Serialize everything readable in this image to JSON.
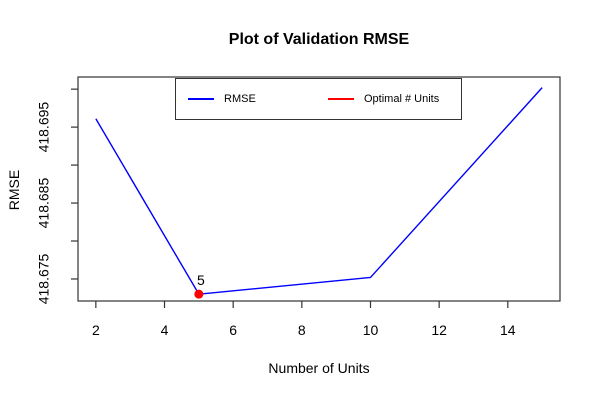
{
  "chart_data": {
    "type": "line",
    "title": "Plot of Validation RMSE",
    "xlabel": "Number of Units",
    "ylabel": "RMSE",
    "x": [
      2,
      5,
      10,
      15
    ],
    "series": [
      {
        "name": "RMSE",
        "color": "#0000ff",
        "values": [
          418.6961,
          418.673,
          418.6752,
          418.7002
        ]
      }
    ],
    "optimal_point": {
      "x": 5,
      "value": 418.673,
      "label": "5",
      "color": "#ff0000"
    },
    "xticks": [
      2,
      4,
      6,
      8,
      10,
      12,
      14
    ],
    "yticks": [
      {
        "value": 418.675,
        "label": "418.675"
      },
      {
        "value": 418.68,
        "label": ""
      },
      {
        "value": 418.685,
        "label": "418.685"
      },
      {
        "value": 418.69,
        "label": ""
      },
      {
        "value": 418.695,
        "label": "418.695"
      },
      {
        "value": 418.7,
        "label": ""
      }
    ],
    "xlim": [
      1.48,
      15.52
    ],
    "ylim": [
      418.6721,
      418.7016
    ],
    "grid": false,
    "axis_color": "#333333",
    "text_color": "#000000",
    "legend": {
      "position": "top-center-inside",
      "items": [
        {
          "label": "RMSE",
          "color": "#0000ff"
        },
        {
          "label": "Optimal # Units",
          "color": "#ff0000"
        }
      ]
    }
  }
}
